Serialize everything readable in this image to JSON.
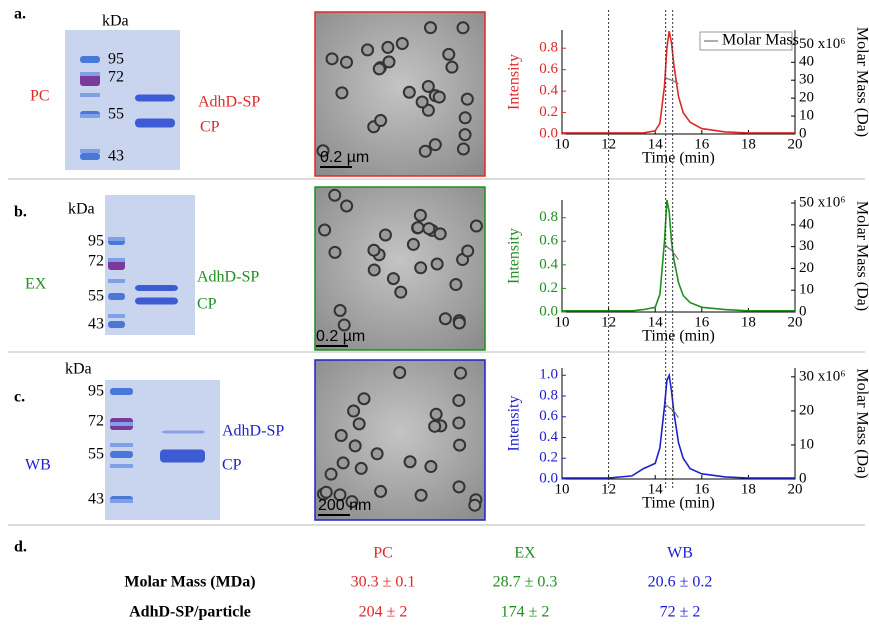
{
  "panels": [
    {
      "label": "a.",
      "sample": "PC",
      "color": "#e02828",
      "gel": {
        "unit": "kDa",
        "markers": [
          "95",
          "72",
          "55",
          "43"
        ],
        "bands": [
          "AdhD-SP",
          "CP"
        ]
      },
      "scale_bar": "0.2 µm"
    },
    {
      "label": "b.",
      "sample": "EX",
      "color": "#1f8f1f",
      "gel": {
        "unit": "kDa",
        "markers": [
          "95",
          "72",
          "55",
          "43"
        ],
        "bands": [
          "AdhD-SP",
          "CP"
        ]
      },
      "scale_bar": "0.2 µm"
    },
    {
      "label": "c.",
      "sample": "WB",
      "color": "#2020d0",
      "gel": {
        "unit": "kDa",
        "markers": [
          "95",
          "72",
          "55",
          "43"
        ],
        "bands": [
          "AdhD-SP",
          "CP"
        ]
      },
      "scale_bar": "200 nm"
    }
  ],
  "reference_lines": {
    "x": [
      12,
      14.45,
      14.75
    ]
  },
  "chart_data": [
    {
      "type": "line",
      "x_label": "Time (min)",
      "y_label": "Intensity",
      "y2_label": "Molar Mass (Da)",
      "legend": "upper right",
      "x": [
        10,
        11,
        12,
        13,
        13.5,
        14,
        14.2,
        14.4,
        14.5,
        14.6,
        14.7,
        14.8,
        15,
        15.2,
        15.5,
        16,
        17,
        18,
        19,
        20
      ],
      "xlim": [
        10,
        20
      ],
      "xticks": [
        10,
        12,
        14,
        16,
        18,
        20
      ],
      "ylim": [
        0,
        0.97
      ],
      "yticks": [
        {
          "value": 0,
          "label": "0.0"
        },
        0.2,
        0.4,
        0.6,
        0.8
      ],
      "y2lim": [
        0,
        58
      ],
      "y2ticks": [
        0,
        10,
        20,
        30,
        40,
        {
          "value": 50,
          "label": "50 x10⁶"
        }
      ],
      "series": [
        {
          "color": "#e02828",
          "values": [
            0.01,
            0.01,
            0.01,
            0.01,
            0.01,
            0.03,
            0.1,
            0.45,
            0.8,
            0.96,
            0.85,
            0.65,
            0.35,
            0.2,
            0.11,
            0.05,
            0.02,
            0.01,
            0.01,
            0.01
          ]
        },
        {
          "name": "Molar Mass",
          "color": "#777777",
          "axis": "y2",
          "values": [
            null,
            null,
            null,
            null,
            null,
            null,
            null,
            32,
            31,
            30.5,
            30,
            29.5,
            28,
            null,
            null,
            null,
            null,
            null,
            null,
            null
          ]
        }
      ]
    },
    {
      "type": "line",
      "x_label": "Time (min)",
      "y_label": "Intensity",
      "y2_label": "Molar Mass (Da)",
      "x": [
        10,
        11,
        12,
        13,
        13.5,
        14,
        14.2,
        14.4,
        14.5,
        14.6,
        14.7,
        14.8,
        15,
        15.2,
        15.5,
        16,
        17,
        18,
        19,
        20
      ],
      "xlim": [
        10,
        20
      ],
      "xticks": [
        10,
        12,
        14,
        16,
        18,
        20
      ],
      "ylim": [
        0,
        0.95
      ],
      "yticks": [
        {
          "value": 0,
          "label": "0.0"
        },
        0.2,
        0.4,
        0.6,
        0.8
      ],
      "y2lim": [
        0,
        51.4
      ],
      "y2ticks": [
        0,
        10,
        20,
        30,
        40,
        {
          "value": 50,
          "label": "50 x10⁶"
        }
      ],
      "series": [
        {
          "color": "#1f8f1f",
          "values": [
            0.01,
            0.01,
            0.01,
            0.01,
            0.02,
            0.04,
            0.15,
            0.6,
            0.95,
            0.85,
            0.6,
            0.45,
            0.25,
            0.14,
            0.08,
            0.04,
            0.02,
            0.01,
            0.01,
            0.01
          ]
        },
        {
          "color": "#777777",
          "axis": "y2",
          "values": [
            null,
            null,
            null,
            null,
            null,
            null,
            null,
            31,
            30,
            29,
            28.5,
            27,
            24,
            null,
            null,
            null,
            null,
            null,
            null,
            null
          ]
        }
      ]
    },
    {
      "type": "line",
      "x_label": "Time (min)",
      "y_label": "Intensity",
      "y2_label": "Molar Mass (Da)",
      "x": [
        10,
        11,
        12,
        13,
        13.5,
        14,
        14.2,
        14.4,
        14.5,
        14.6,
        14.7,
        14.8,
        15,
        15.2,
        15.5,
        16,
        17,
        18,
        19,
        20
      ],
      "xlim": [
        10,
        20
      ],
      "xticks": [
        10,
        12,
        14,
        16,
        18,
        20
      ],
      "ylim": [
        0,
        1.07
      ],
      "yticks": [
        {
          "value": 0,
          "label": "0.0"
        },
        0.2,
        0.4,
        0.6,
        0.8,
        {
          "value": 1,
          "label": "1.0"
        }
      ],
      "y2lim": [
        0,
        32.6
      ],
      "y2ticks": [
        0,
        10,
        20,
        {
          "value": 30,
          "label": "30 x10⁶"
        }
      ],
      "series": [
        {
          "color": "#2020d0",
          "values": [
            0.01,
            0.01,
            0.01,
            0.03,
            0.1,
            0.15,
            0.3,
            0.7,
            0.95,
            1.0,
            0.85,
            0.65,
            0.35,
            0.2,
            0.1,
            0.05,
            0.02,
            0.01,
            0.01,
            0.01
          ]
        },
        {
          "color": "#777777",
          "axis": "y2",
          "values": [
            null,
            null,
            null,
            null,
            null,
            null,
            null,
            22,
            21.5,
            21,
            20.5,
            20,
            18,
            null,
            null,
            null,
            null,
            null,
            null,
            null
          ]
        }
      ]
    }
  ],
  "table": {
    "label": "d.",
    "columns": [
      "PC",
      "EX",
      "WB"
    ],
    "rows": [
      {
        "label": "Molar Mass (MDa)",
        "cells": [
          "30.3 ± 0.1",
          "28.7 ± 0.3",
          "20.6 ± 0.2"
        ]
      },
      {
        "label": "AdhD-SP/particle",
        "cells": [
          "204 ± 2",
          "174 ± 2",
          "72 ± 2"
        ]
      }
    ]
  }
}
